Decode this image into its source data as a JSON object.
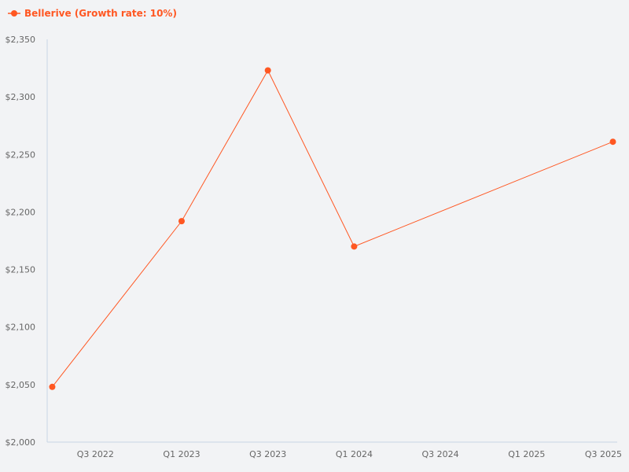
{
  "chart_data": {
    "type": "line",
    "title": "",
    "xlabel": "",
    "ylabel": "",
    "legend_position": "top-left",
    "grid": false,
    "ylim": [
      2000,
      2350
    ],
    "y_ticks": [
      "$2,000",
      "$2,050",
      "$2,100",
      "$2,150",
      "$2,200",
      "$2,250",
      "$2,300",
      "$2,350"
    ],
    "y_tick_values": [
      2000,
      2050,
      2100,
      2150,
      2200,
      2250,
      2300,
      2350
    ],
    "x_ticks": [
      "Q3 2022",
      "Q1 2023",
      "Q3 2023",
      "Q1 2024",
      "Q3 2024",
      "Q1 2025",
      "Q3 2025"
    ],
    "xlim": [
      "Q2 2022",
      "Q3 2025"
    ],
    "series": [
      {
        "name": "Bellerive (Growth rate: 10%)",
        "color": "#ff5722",
        "x": [
          "Q2 2022",
          "Q1 2023",
          "Q3 2023",
          "Q1 2024",
          "Q3 2025"
        ],
        "y": [
          2048,
          2192,
          2323,
          2170,
          2261
        ]
      }
    ]
  }
}
